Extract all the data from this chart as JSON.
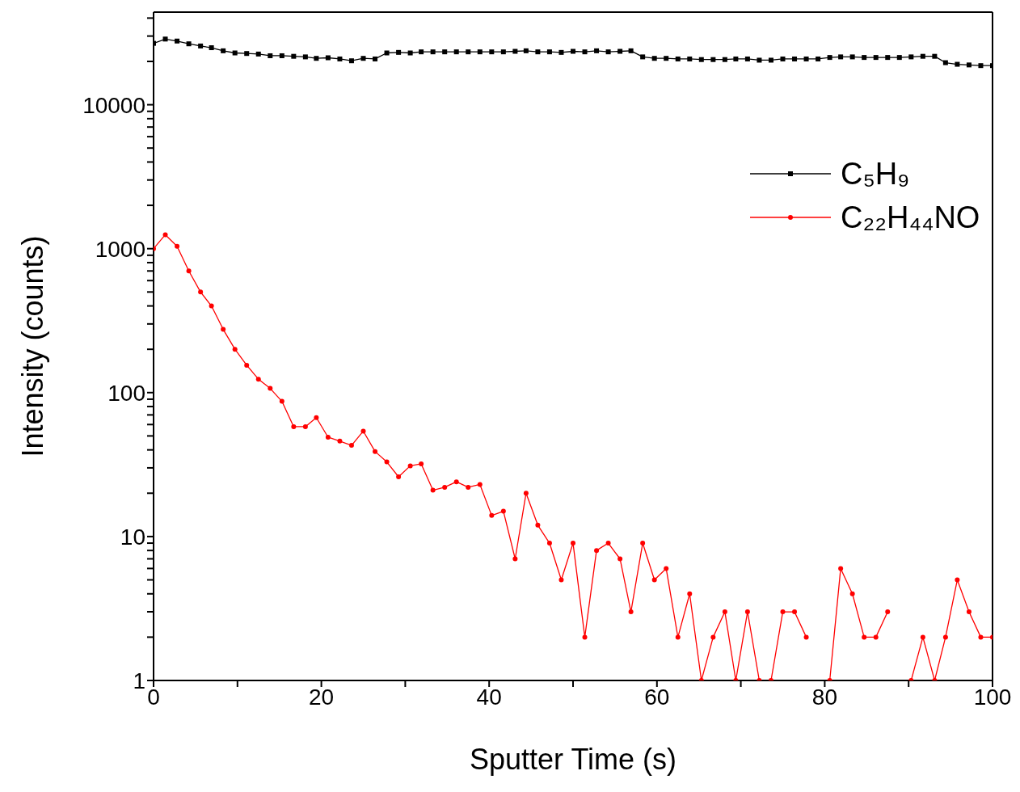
{
  "chart_data": {
    "type": "line",
    "xlabel": "Sputter Time (s)",
    "ylabel": "Intensity (counts)",
    "log": "y",
    "grid": false,
    "legend": "top right",
    "xlim": [
      0,
      100
    ],
    "xticks": [
      0,
      {
        "value": 10,
        "label": null
      },
      20,
      {
        "value": 30,
        "label": null
      },
      40,
      {
        "value": 50,
        "label": null
      },
      60,
      {
        "value": 70,
        "label": null
      },
      80,
      {
        "value": 90,
        "label": null
      },
      100
    ],
    "ylim": [
      1,
      44000
    ],
    "yticks": [
      1,
      {
        "value": 2,
        "label": null
      },
      {
        "value": 3,
        "label": null
      },
      {
        "value": 4,
        "label": null
      },
      {
        "value": 5,
        "label": null
      },
      {
        "value": 6,
        "label": null
      },
      {
        "value": 7,
        "label": null
      },
      {
        "value": 8,
        "label": null
      },
      {
        "value": 9,
        "label": null
      },
      10,
      {
        "value": 20,
        "label": null
      },
      {
        "value": 30,
        "label": null
      },
      {
        "value": 40,
        "label": null
      },
      {
        "value": 50,
        "label": null
      },
      {
        "value": 60,
        "label": null
      },
      {
        "value": 70,
        "label": null
      },
      {
        "value": 80,
        "label": null
      },
      {
        "value": 90,
        "label": null
      },
      100,
      {
        "value": 200,
        "label": null
      },
      {
        "value": 300,
        "label": null
      },
      {
        "value": 400,
        "label": null
      },
      {
        "value": 500,
        "label": null
      },
      {
        "value": 600,
        "label": null
      },
      {
        "value": 700,
        "label": null
      },
      {
        "value": 800,
        "label": null
      },
      {
        "value": 900,
        "label": null
      },
      1000,
      {
        "value": 2000,
        "label": null
      },
      {
        "value": 3000,
        "label": null
      },
      {
        "value": 4000,
        "label": null
      },
      {
        "value": 5000,
        "label": null
      },
      {
        "value": 6000,
        "label": null
      },
      {
        "value": 7000,
        "label": null
      },
      {
        "value": 8000,
        "label": null
      },
      {
        "value": 9000,
        "label": null
      },
      10000,
      {
        "value": 20000,
        "label": null
      },
      {
        "value": 30000,
        "label": null
      },
      {
        "value": 40000,
        "label": null
      }
    ],
    "x": [
      0,
      1.4,
      2.8,
      4.2,
      5.6,
      6.9,
      8.3,
      9.7,
      11.1,
      12.5,
      13.9,
      15.3,
      16.7,
      18.1,
      19.4,
      20.8,
      22.2,
      23.6,
      25,
      26.4,
      27.8,
      29.2,
      30.6,
      31.9,
      33.3,
      34.7,
      36.1,
      37.5,
      38.9,
      40.3,
      41.7,
      43.1,
      44.4,
      45.8,
      47.2,
      48.6,
      50,
      51.4,
      52.8,
      54.2,
      55.6,
      56.9,
      58.3,
      59.7,
      61.1,
      62.5,
      63.9,
      65.3,
      66.7,
      68.1,
      69.4,
      70.8,
      72.2,
      73.6,
      75,
      76.4,
      77.8,
      79.2,
      80.6,
      81.9,
      83.3,
      84.7,
      86.1,
      87.5,
      88.9,
      90.3,
      91.7,
      93.1,
      94.4,
      95.8,
      97.2,
      98.6,
      100
    ],
    "series": [
      {
        "name": "C₅H₉",
        "color": "#000000",
        "marker": "square",
        "values": [
          26700,
          28600,
          27700,
          26500,
          25600,
          24900,
          23700,
          22900,
          22700,
          22500,
          21900,
          21900,
          21700,
          21500,
          21000,
          21200,
          20800,
          20200,
          21000,
          20800,
          22900,
          23100,
          22900,
          23300,
          23300,
          23300,
          23300,
          23300,
          23300,
          23300,
          23300,
          23500,
          23700,
          23300,
          23300,
          23100,
          23500,
          23300,
          23700,
          23300,
          23500,
          23700,
          21500,
          21000,
          21000,
          20800,
          20800,
          20600,
          20600,
          20600,
          20800,
          20800,
          20400,
          20400,
          20800,
          20800,
          20800,
          20800,
          21300,
          21500,
          21500,
          21300,
          21300,
          21300,
          21300,
          21500,
          21700,
          21700,
          19600,
          19100,
          18900,
          18700,
          18700
        ]
      },
      {
        "name": "C₂₂H₄₄NO",
        "color": "#ff0000",
        "marker": "circle",
        "values": [
          1000,
          1250,
          1040,
          700,
          500,
          400,
          275,
          200,
          155,
          124,
          107,
          87,
          58,
          58,
          67,
          49,
          46,
          43,
          54,
          39,
          33,
          26,
          31,
          32,
          21,
          22,
          24,
          22,
          23,
          14,
          15,
          7,
          20,
          12,
          9,
          5,
          9,
          2,
          8,
          9,
          7,
          3,
          9,
          5,
          6,
          2,
          4,
          1,
          2,
          3,
          1,
          3,
          1,
          1,
          3,
          3,
          2,
          null,
          1,
          6,
          4,
          2,
          2,
          3,
          null,
          1,
          2,
          1,
          2,
          5,
          3,
          2,
          2
        ]
      }
    ]
  }
}
